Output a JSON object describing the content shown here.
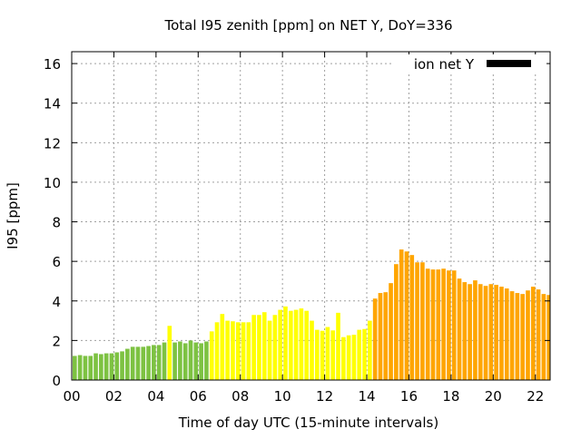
{
  "chart_data": {
    "type": "bar",
    "title": "Total I95 zenith [ppm] on NET Y, DoY=336",
    "xlabel": "Time of day UTC (15-minute intervals)",
    "ylabel": "I95 [ppm]",
    "xlim": [
      0,
      22.7
    ],
    "ylim": [
      0,
      16.6
    ],
    "x_ticks": [
      0,
      2,
      4,
      6,
      8,
      10,
      12,
      14,
      16,
      18,
      20,
      22
    ],
    "x_tick_labels": [
      "00",
      "02",
      "04",
      "06",
      "08",
      "10",
      "12",
      "14",
      "16",
      "18",
      "20",
      "22"
    ],
    "y_ticks": [
      0,
      2,
      4,
      6,
      8,
      10,
      12,
      14,
      16
    ],
    "y_tick_labels": [
      "0",
      "2",
      "4",
      "6",
      "8",
      "10",
      "12",
      "14",
      "16"
    ],
    "grid": true,
    "legend": {
      "label": "ion net Y",
      "color": "#000000",
      "placement": "top-right"
    },
    "bar_interval_hours": 0.25,
    "colors": {
      "green": "#7dc242",
      "yellow": "#ffff00",
      "orange": "#ffa500"
    },
    "values": [
      1.22,
      1.26,
      1.22,
      1.22,
      1.35,
      1.31,
      1.35,
      1.35,
      1.4,
      1.45,
      1.58,
      1.68,
      1.68,
      1.68,
      1.72,
      1.77,
      1.77,
      1.9,
      2.74,
      1.9,
      1.95,
      1.86,
      2.0,
      1.9,
      1.86,
      1.95,
      2.46,
      2.92,
      3.34,
      3.0,
      2.97,
      2.92,
      2.92,
      2.92,
      3.29,
      3.29,
      3.43,
      3.0,
      3.29,
      3.55,
      3.72,
      3.5,
      3.55,
      3.62,
      3.5,
      3.0,
      2.54,
      2.49,
      2.68,
      2.51,
      3.4,
      2.17,
      2.26,
      2.29,
      2.54,
      2.58,
      3.0,
      4.12,
      4.4,
      4.44,
      4.9,
      5.86,
      6.6,
      6.5,
      6.32,
      5.95,
      5.95,
      5.63,
      5.59,
      5.59,
      5.63,
      5.54,
      5.54,
      5.13,
      4.95,
      4.85,
      5.04,
      4.85,
      4.76,
      4.85,
      4.81,
      4.72,
      4.63,
      4.49,
      4.4,
      4.35,
      4.53,
      4.72,
      4.58,
      4.35,
      4.3,
      4.44
    ],
    "bar_colors": [
      "green",
      "green",
      "green",
      "green",
      "green",
      "green",
      "green",
      "green",
      "green",
      "green",
      "green",
      "green",
      "green",
      "green",
      "green",
      "green",
      "green",
      "green",
      "yellow",
      "green",
      "green",
      "green",
      "green",
      "green",
      "green",
      "green",
      "yellow",
      "yellow",
      "yellow",
      "yellow",
      "yellow",
      "yellow",
      "yellow",
      "yellow",
      "yellow",
      "yellow",
      "yellow",
      "yellow",
      "yellow",
      "yellow",
      "yellow",
      "yellow",
      "yellow",
      "yellow",
      "yellow",
      "yellow",
      "yellow",
      "yellow",
      "yellow",
      "yellow",
      "yellow",
      "yellow",
      "yellow",
      "yellow",
      "yellow",
      "yellow",
      "yellow",
      "orange",
      "orange",
      "orange",
      "orange",
      "orange",
      "orange",
      "orange",
      "orange",
      "orange",
      "orange",
      "orange",
      "orange",
      "orange",
      "orange",
      "orange",
      "orange",
      "orange",
      "orange",
      "orange",
      "orange",
      "orange",
      "orange",
      "orange",
      "orange",
      "orange",
      "orange",
      "orange",
      "orange",
      "orange",
      "orange",
      "orange",
      "orange",
      "orange",
      "orange",
      "orange"
    ]
  }
}
